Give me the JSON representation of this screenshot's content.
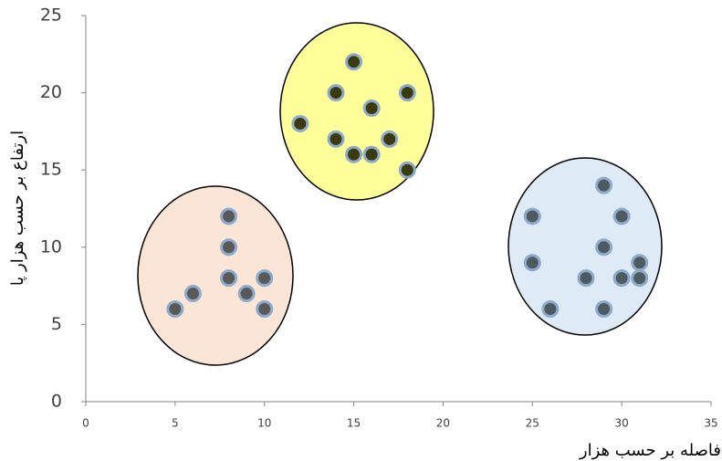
{
  "chart_data": {
    "type": "scatter",
    "xlabel": "فاصله بر حسب هزار",
    "ylabel": "ارتفاع بر حسب هزار پا",
    "xlim": [
      0,
      35
    ],
    "xticks": [
      0,
      5,
      10,
      15,
      20,
      25,
      30,
      35
    ],
    "ylim": [
      0,
      25
    ],
    "yticks": [
      0,
      5,
      10,
      15,
      20,
      25
    ],
    "series": [
      {
        "color": "#595959",
        "x": [
          5,
          6,
          8,
          8,
          8,
          9,
          10,
          10
        ],
        "values": [
          6,
          7,
          12,
          10,
          8,
          7,
          8,
          6
        ]
      },
      {
        "color": "#3a3a0c",
        "x": [
          15,
          14,
          18,
          12,
          16,
          14,
          17,
          15,
          16,
          18
        ],
        "values": [
          22,
          20,
          20,
          18,
          19,
          17,
          17,
          16,
          16,
          15
        ]
      },
      {
        "color": "#4d5a60",
        "x": [
          25,
          25,
          26,
          29,
          30,
          29,
          28,
          30,
          31,
          31,
          29
        ],
        "values": [
          12,
          9,
          6,
          14,
          12,
          10,
          8,
          8,
          9,
          8,
          6
        ]
      }
    ]
  }
}
